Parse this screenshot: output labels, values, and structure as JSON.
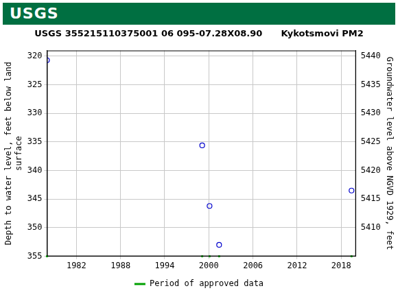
{
  "banner": "USGS",
  "chart_data": {
    "type": "scatter",
    "title": "USGS 355215110375001 06 095-07.28X08.90      Kykotsmovi PM2",
    "x_label": null,
    "y_label": [
      "Depth to water level, feet below land",
      "surface"
    ],
    "y2_label": "Groundwater level above NGVD 1929, feet",
    "xlim": [
      1978,
      2020
    ],
    "xticks": [
      1982,
      1988,
      1994,
      2000,
      2006,
      2012,
      2018
    ],
    "ylim": [
      355,
      319
    ],
    "yticks": [
      320,
      325,
      330,
      335,
      340,
      345,
      350,
      355
    ],
    "y2lim": [
      5405,
      5441
    ],
    "y2ticks": [
      5410,
      5415,
      5420,
      5425,
      5430,
      5435,
      5440
    ],
    "grid": true,
    "legend": "bottom",
    "series": [
      {
        "color": "#0000cc",
        "marker": "circle-open",
        "x": [
          1978.0,
          1999.1,
          2000.1,
          2001.4,
          2019.4
        ],
        "values": [
          320.7,
          335.6,
          346.2,
          353.0,
          343.5
        ]
      },
      {
        "name": "Period of approved data",
        "color": "#00a000",
        "marker": "square",
        "x": [
          1978.0,
          1999.1,
          2000.1,
          2001.4,
          2019.4
        ]
      }
    ]
  }
}
